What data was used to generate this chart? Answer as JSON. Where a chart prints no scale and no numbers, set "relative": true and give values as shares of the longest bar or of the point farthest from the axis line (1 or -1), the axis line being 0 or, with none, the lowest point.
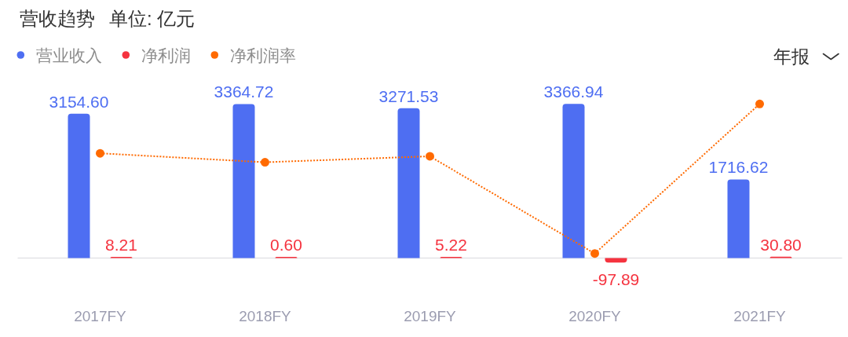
{
  "chart_data": [
    {
      "type": "bar",
      "title": "营收趋势",
      "subtitle": "单位: 亿元",
      "categories": [
        "2017FY",
        "2018FY",
        "2019FY",
        "2020FY",
        "2021FY"
      ],
      "series": [
        {
          "name": "营业收入",
          "color": "#4e6ef2",
          "values": [
            3154.6,
            3364.72,
            3271.53,
            3366.94,
            1716.62
          ],
          "value_labels": [
            "3154.60",
            "3364.72",
            "3271.53",
            "3366.94",
            "1716.62"
          ]
        },
        {
          "name": "净利润",
          "color": "#f5333f",
          "values": [
            8.21,
            0.6,
            5.22,
            -97.89,
            30.8
          ],
          "value_labels": [
            "8.21",
            "0.60",
            "5.22",
            "-97.89",
            "30.80"
          ]
        }
      ],
      "legend": "top left",
      "tick_labels": "x",
      "annotations": [
        "年报"
      ]
    },
    {
      "type": "line",
      "relative": true,
      "categories": [
        null,
        null,
        null,
        null,
        null
      ],
      "series": [
        {
          "name": "净利润率",
          "color": "#ff6a00",
          "values": [
            0.67,
            0.61,
            0.65,
            0,
            1
          ]
        }
      ],
      "marker": "circle",
      "line_style": "dotted",
      "legend": "top left"
    }
  ]
}
